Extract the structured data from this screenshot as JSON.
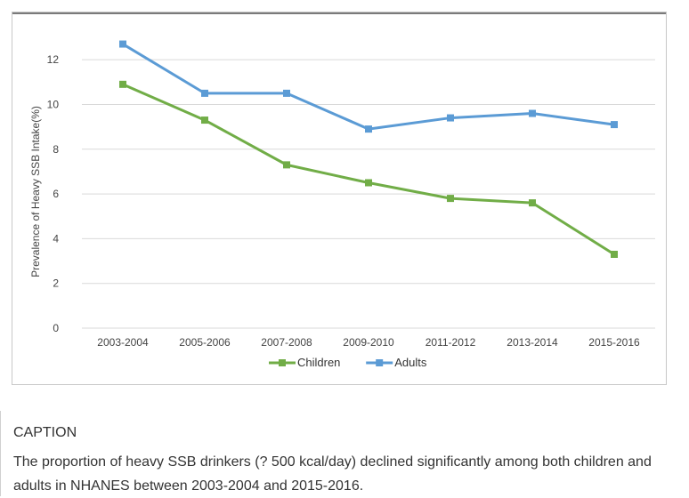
{
  "chart_data": {
    "type": "line",
    "title": "",
    "xlabel": "",
    "ylabel": "Prevalence of Heavy SSB Intake(%)",
    "categories": [
      "2003-2004",
      "2005-2006",
      "2007-2008",
      "2009-2010",
      "2011-2012",
      "2013-2014",
      "2015-2016"
    ],
    "ylim": [
      0,
      13
    ],
    "yticks": [
      0,
      2,
      4,
      6,
      8,
      10,
      12
    ],
    "grid": true,
    "legend_position": "bottom",
    "series": [
      {
        "name": "Children",
        "color": "#71ad47",
        "values": [
          10.9,
          9.3,
          7.3,
          6.5,
          5.8,
          5.6,
          3.3
        ]
      },
      {
        "name": "Adults",
        "color": "#5b9bd5",
        "values": [
          12.7,
          10.5,
          10.5,
          8.9,
          9.4,
          9.6,
          9.1
        ]
      }
    ]
  },
  "caption": {
    "heading": "CAPTION",
    "text": "The proportion of heavy SSB drinkers (? 500 kcal/day) declined significantly among both children and adults in NHANES between 2003-2004 and 2015-2016."
  }
}
